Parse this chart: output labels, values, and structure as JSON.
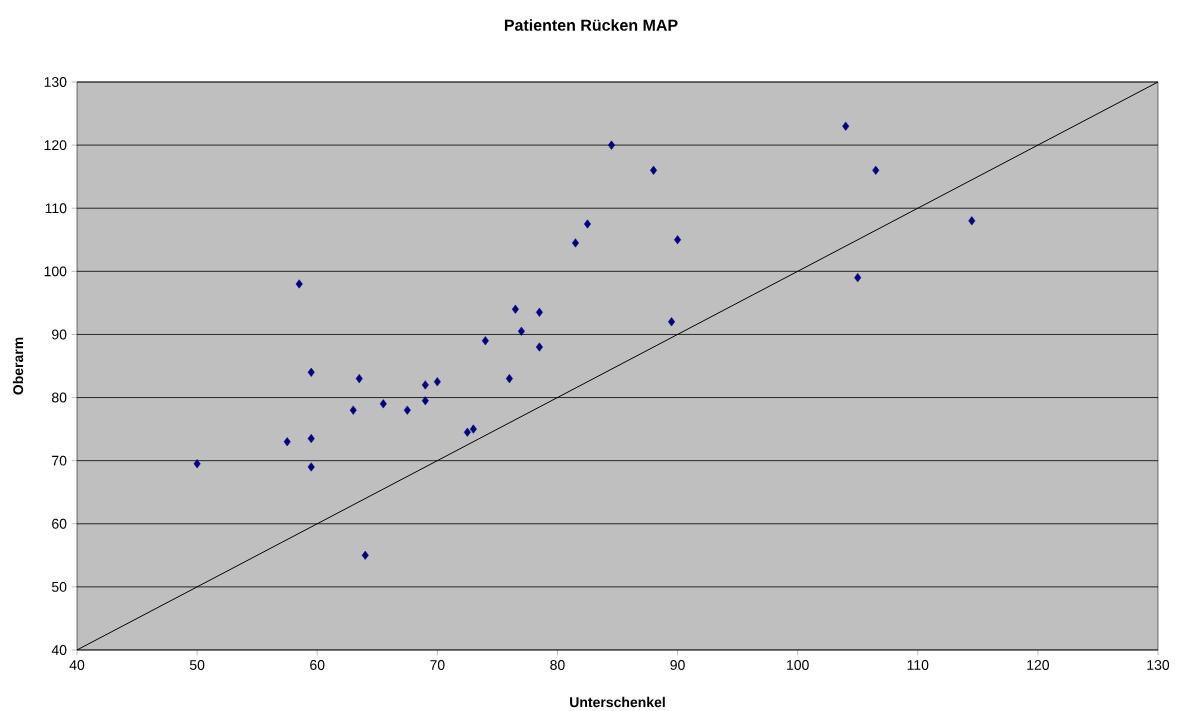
{
  "chart_data": {
    "type": "scatter",
    "title": "Patienten Rücken MAP",
    "xlabel": "Unterschenkel",
    "ylabel": "Oberarm",
    "xlim": [
      40,
      130
    ],
    "ylim": [
      40,
      130
    ],
    "xticks": [
      40,
      50,
      60,
      70,
      80,
      90,
      100,
      110,
      120,
      130
    ],
    "yticks": [
      40,
      50,
      60,
      70,
      80,
      90,
      100,
      110,
      120,
      130
    ],
    "grid": "y",
    "marker": "diamond",
    "series": [
      {
        "color": "#000080",
        "x": [
          50,
          57.5,
          58.5,
          59.5,
          59.5,
          59.5,
          63,
          63.5,
          64,
          65.5,
          67.5,
          69,
          69,
          70,
          72.5,
          73,
          74,
          76,
          76.5,
          77,
          78.5,
          78.5,
          81.5,
          82.5,
          84.5,
          88,
          89.5,
          90,
          104,
          105,
          106.5,
          114.5
        ],
        "values": [
          69.5,
          73,
          98,
          84,
          73.5,
          69,
          78,
          83,
          55,
          79,
          78,
          82,
          79.5,
          82.5,
          74.5,
          75,
          89,
          83,
          94,
          90.5,
          88,
          93.5,
          104.5,
          107.5,
          120,
          116,
          92,
          105,
          123,
          99,
          116,
          108
        ]
      },
      {
        "type": "line",
        "color": "#000000",
        "marker": "none",
        "x": [
          40,
          130
        ],
        "values": [
          40,
          130
        ]
      }
    ]
  }
}
